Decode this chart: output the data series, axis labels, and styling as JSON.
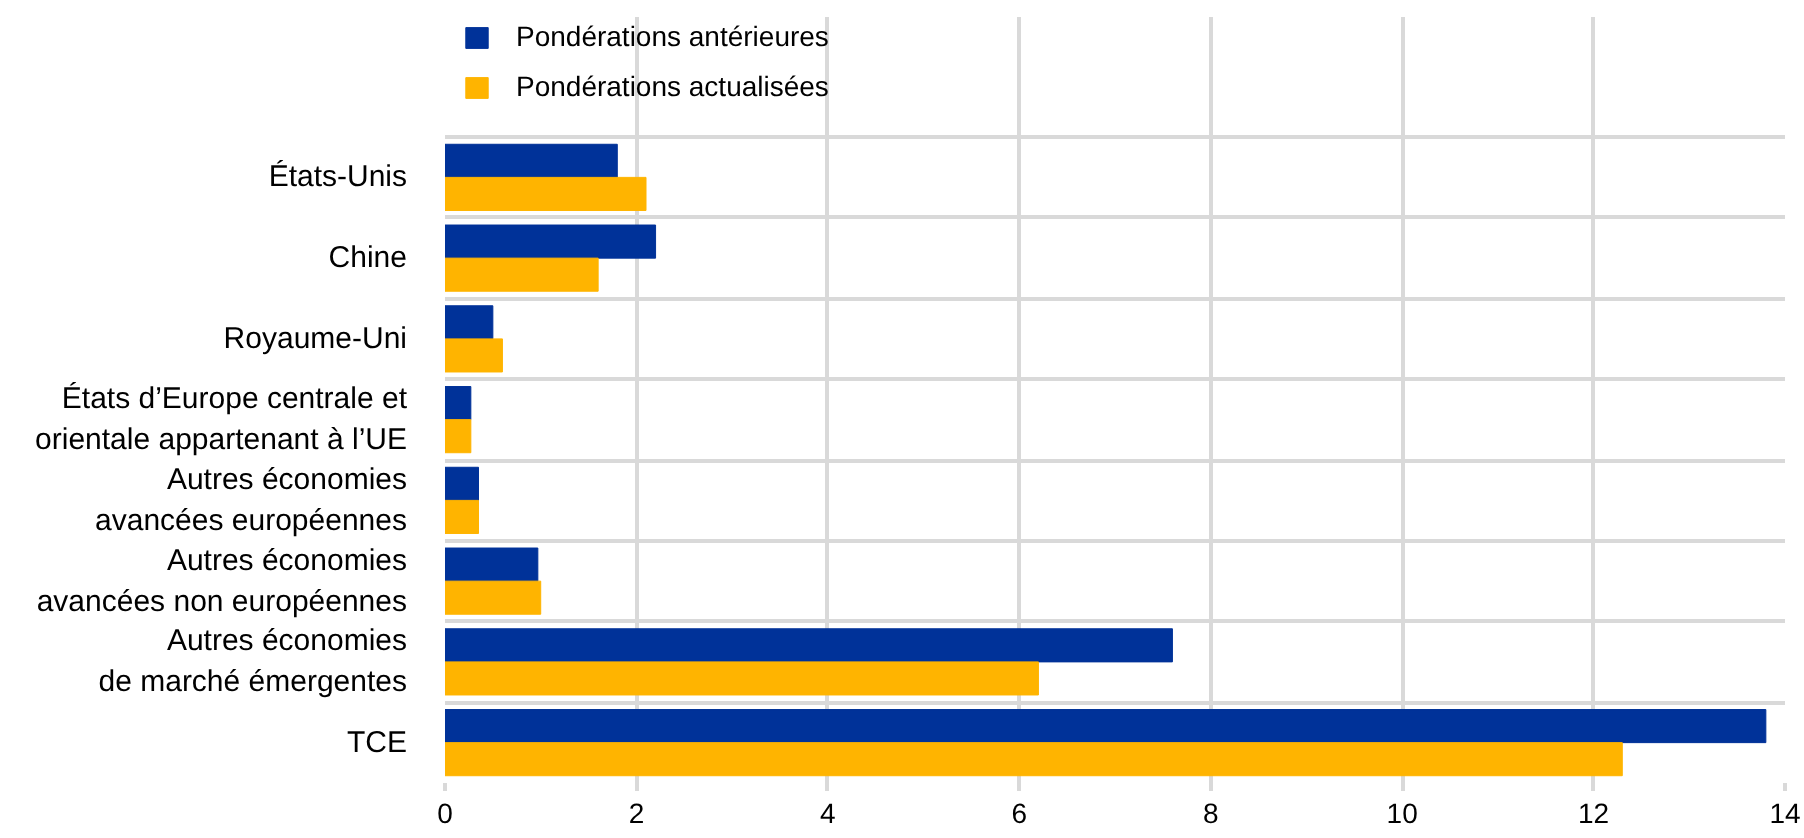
{
  "chart_data": {
    "type": "bar",
    "orientation": "horizontal",
    "categories": [
      "États-Unis",
      "Chine",
      "Royaume-Uni",
      "États d’Europe centrale et\norientale appartenant à l’UE",
      "Autres économies\navancées européennes",
      "Autres économies\navancées non européennes",
      "Autres économies\nde marché émergentes",
      "TCE"
    ],
    "series": [
      {
        "name": "Pondérations antérieures",
        "color": "#003299",
        "values": [
          1.8,
          2.2,
          0.5,
          0.27,
          0.35,
          0.97,
          7.6,
          13.8
        ]
      },
      {
        "name": "Pondérations actualisées",
        "color": "#ffb400",
        "values": [
          2.1,
          1.6,
          0.6,
          0.27,
          0.35,
          1.0,
          6.2,
          12.3
        ]
      }
    ],
    "xlim": [
      0,
      14
    ],
    "xticks": [
      0,
      2,
      4,
      6,
      8,
      10,
      12,
      14
    ],
    "grid": true,
    "legend": "top left"
  }
}
